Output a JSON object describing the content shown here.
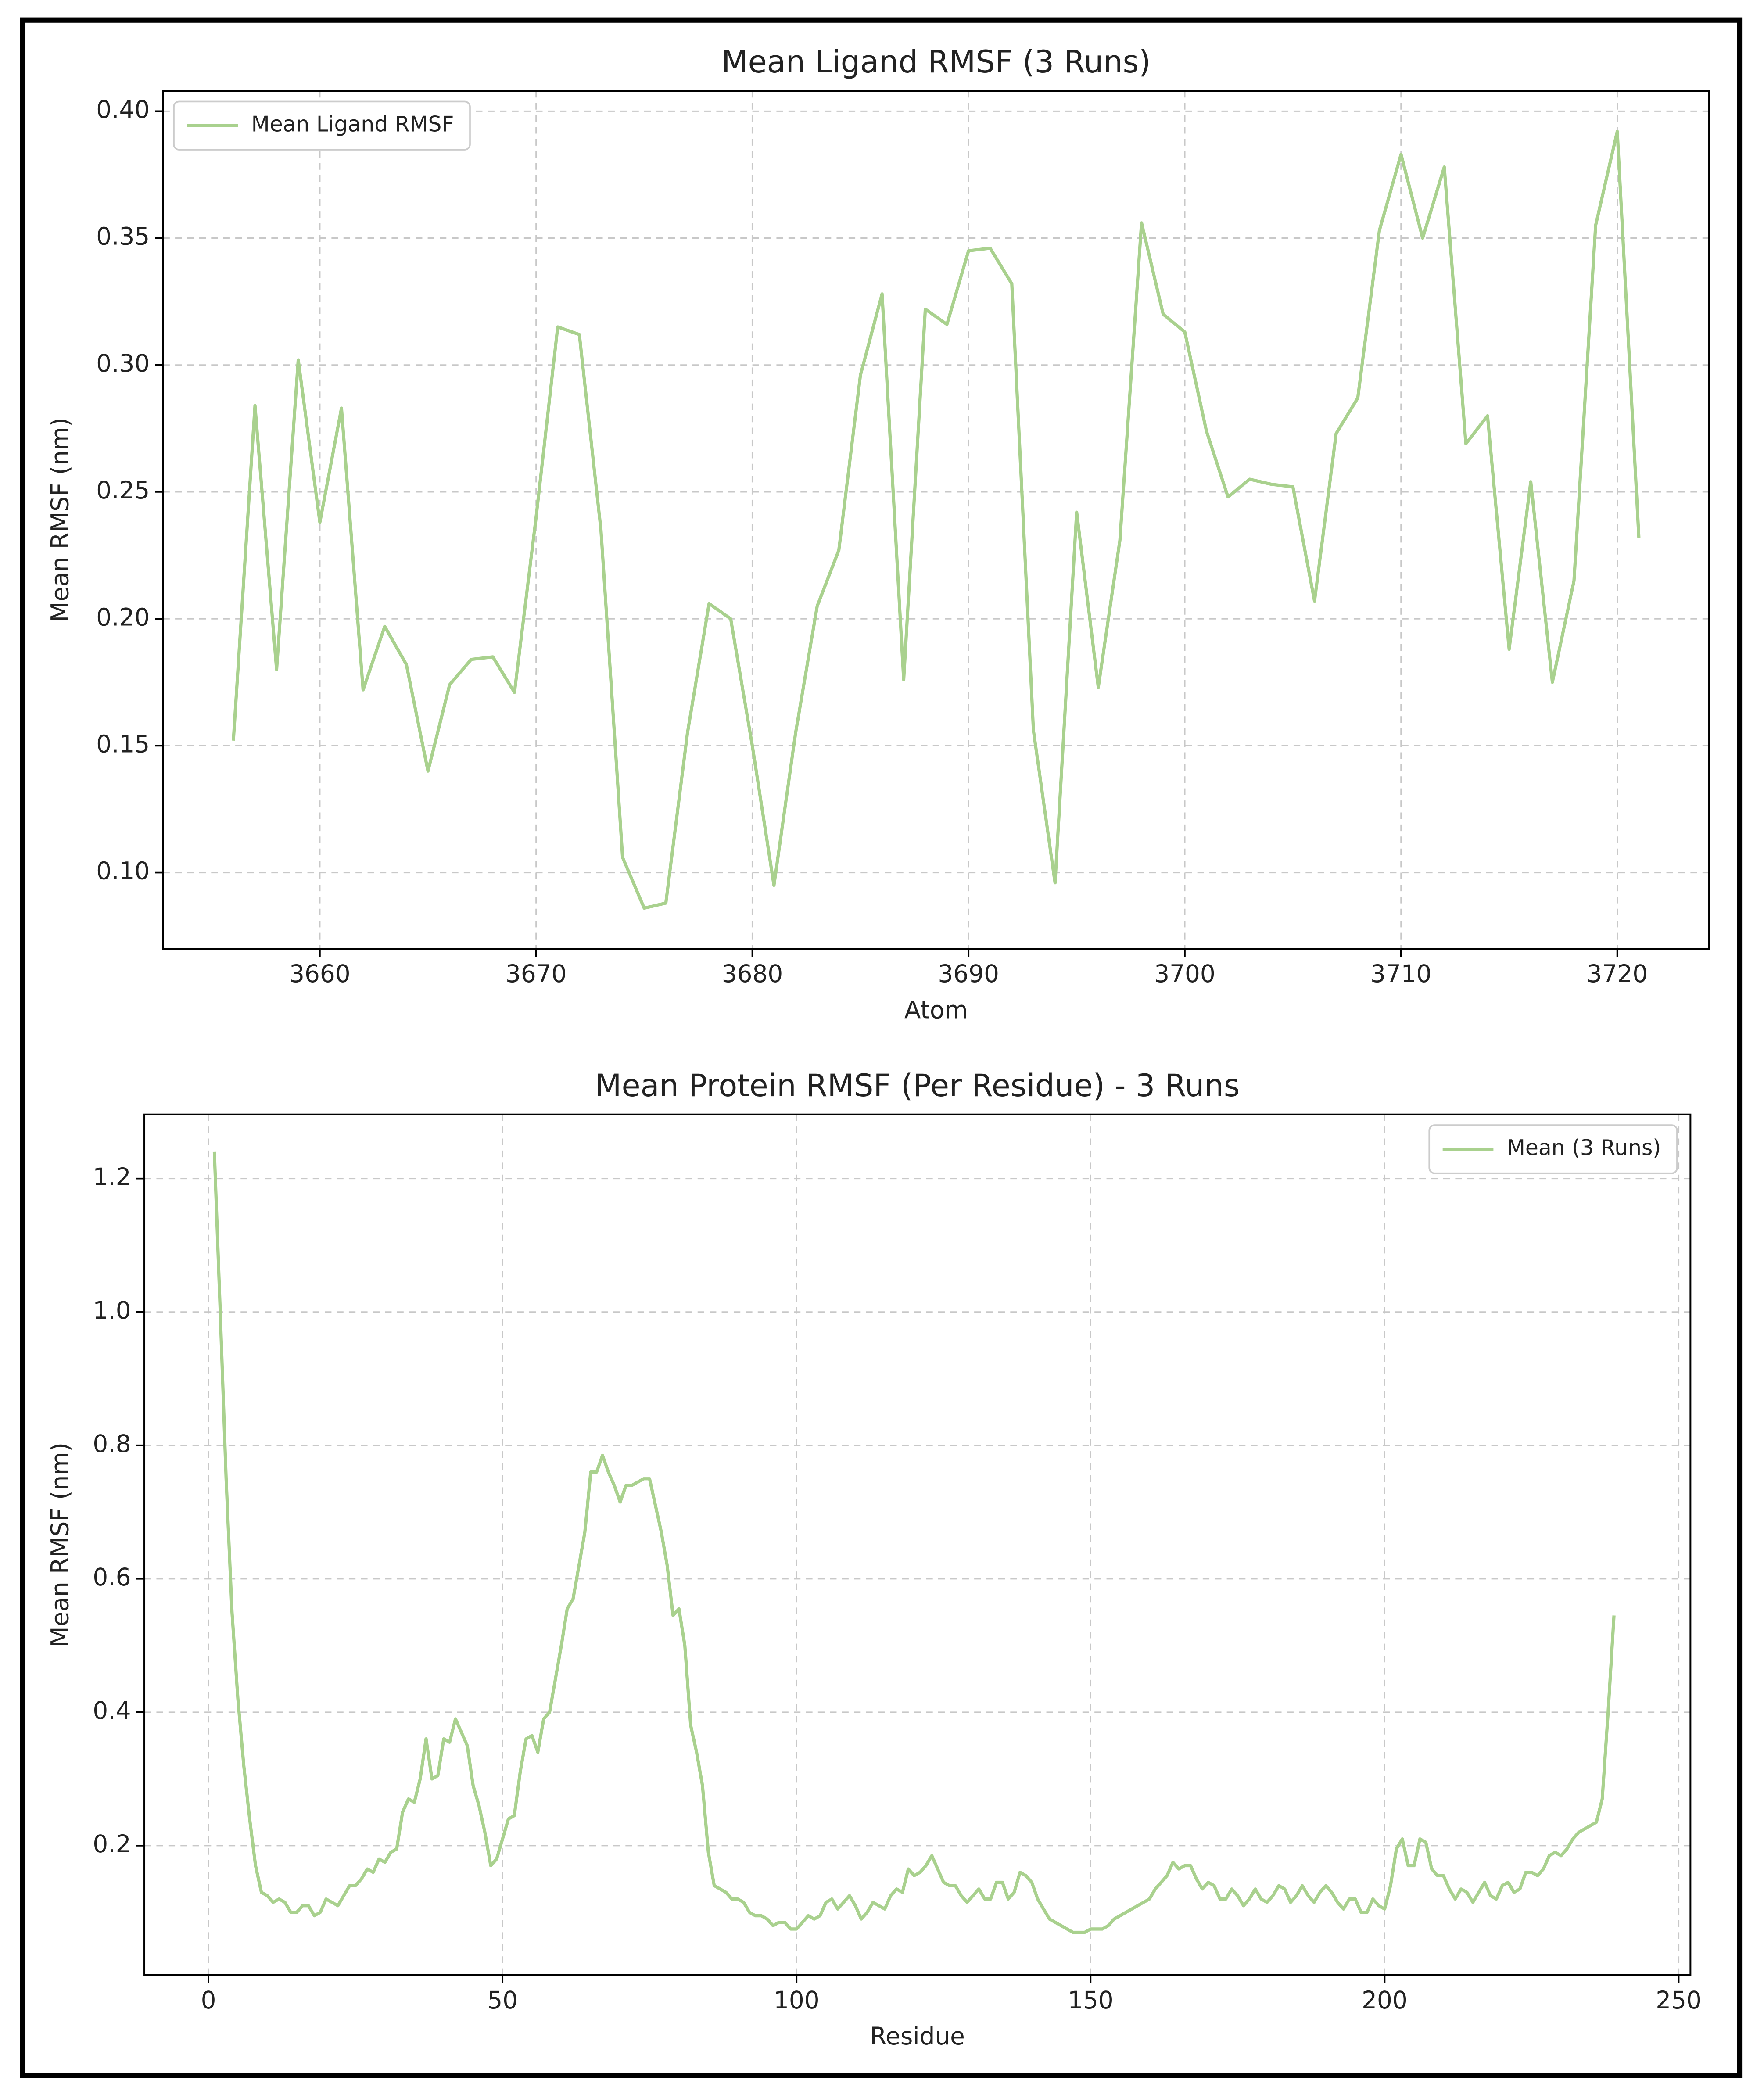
{
  "chart_data": [
    {
      "type": "line",
      "title": "Mean Ligand RMSF (3 Runs)",
      "xlabel": "Atom",
      "ylabel": "Mean RMSF (nm)",
      "x": [
        3656,
        3657,
        3658,
        3659,
        3660,
        3661,
        3662,
        3663,
        3664,
        3665,
        3666,
        3667,
        3668,
        3669,
        3670,
        3671,
        3672,
        3673,
        3674,
        3675,
        3676,
        3677,
        3678,
        3679,
        3680,
        3681,
        3682,
        3683,
        3684,
        3685,
        3686,
        3687,
        3688,
        3689,
        3690,
        3691,
        3692,
        3693,
        3694,
        3695,
        3696,
        3697,
        3698,
        3699,
        3700,
        3701,
        3702,
        3703,
        3704,
        3705,
        3706,
        3707,
        3708,
        3709,
        3710,
        3711,
        3712,
        3713,
        3714,
        3715,
        3716,
        3717,
        3718,
        3719,
        3720,
        3721
      ],
      "series": [
        {
          "name": "Mean Ligand RMSF",
          "color": "#a9d18e",
          "values": [
            0.152,
            0.284,
            0.18,
            0.302,
            0.238,
            0.283,
            0.172,
            0.197,
            0.182,
            0.14,
            0.174,
            0.184,
            0.185,
            0.171,
            0.24,
            0.315,
            0.312,
            0.235,
            0.106,
            0.086,
            0.088,
            0.155,
            0.206,
            0.2,
            0.15,
            0.095,
            0.155,
            0.205,
            0.227,
            0.296,
            0.328,
            0.176,
            0.322,
            0.316,
            0.345,
            0.346,
            0.332,
            0.156,
            0.096,
            0.242,
            0.173,
            0.231,
            0.356,
            0.32,
            0.313,
            0.274,
            0.248,
            0.255,
            0.253,
            0.252,
            0.207,
            0.273,
            0.287,
            0.353,
            0.383,
            0.35,
            0.378,
            0.269,
            0.28,
            0.188,
            0.254,
            0.175,
            0.215,
            0.355,
            0.392,
            0.232
          ]
        }
      ],
      "xlim": [
        3652.75,
        3724.25
      ],
      "ylim": [
        0.07,
        0.408
      ],
      "xticks": [
        3660,
        3670,
        3680,
        3690,
        3700,
        3710,
        3720
      ],
      "yticks": [
        {
          "value": 0.1,
          "label": "0.10"
        },
        0.15,
        {
          "value": 0.2,
          "label": "0.20"
        },
        0.25,
        {
          "value": 0.3,
          "label": "0.30"
        },
        0.35,
        {
          "value": 0.4,
          "label": "0.40"
        }
      ],
      "grid": true,
      "legend": "upper-left"
    },
    {
      "type": "line",
      "title": "Mean Protein RMSF (Per Residue) - 3 Runs",
      "xlabel": "Residue",
      "ylabel": "Mean RMSF (nm)",
      "x": [
        1,
        2,
        3,
        4,
        5,
        6,
        7,
        8,
        9,
        10,
        11,
        12,
        13,
        14,
        15,
        16,
        17,
        18,
        19,
        20,
        21,
        22,
        23,
        24,
        25,
        26,
        27,
        28,
        29,
        30,
        31,
        32,
        33,
        34,
        35,
        36,
        37,
        38,
        39,
        40,
        41,
        42,
        43,
        44,
        45,
        46,
        47,
        48,
        49,
        50,
        51,
        52,
        53,
        54,
        55,
        56,
        57,
        58,
        59,
        60,
        61,
        62,
        63,
        64,
        65,
        66,
        67,
        68,
        69,
        70,
        71,
        72,
        73,
        74,
        75,
        76,
        77,
        78,
        79,
        80,
        81,
        82,
        83,
        84,
        85,
        86,
        87,
        88,
        89,
        90,
        91,
        92,
        93,
        94,
        95,
        96,
        97,
        98,
        99,
        100,
        101,
        102,
        103,
        104,
        105,
        106,
        107,
        108,
        109,
        110,
        111,
        112,
        113,
        114,
        115,
        116,
        117,
        118,
        119,
        120,
        121,
        122,
        123,
        124,
        125,
        126,
        127,
        128,
        129,
        130,
        131,
        132,
        133,
        134,
        135,
        136,
        137,
        138,
        139,
        140,
        141,
        142,
        143,
        144,
        145,
        146,
        147,
        148,
        149,
        150,
        151,
        152,
        153,
        154,
        155,
        156,
        157,
        158,
        159,
        160,
        161,
        162,
        163,
        164,
        165,
        166,
        167,
        168,
        169,
        170,
        171,
        172,
        173,
        174,
        175,
        176,
        177,
        178,
        179,
        180,
        181,
        182,
        183,
        184,
        185,
        186,
        187,
        188,
        189,
        190,
        191,
        192,
        193,
        194,
        195,
        196,
        197,
        198,
        199,
        200,
        201,
        202,
        203,
        204,
        205,
        206,
        207,
        208,
        209,
        210,
        211,
        212,
        213,
        214,
        215,
        216,
        217,
        218,
        219,
        220,
        221,
        222,
        223,
        224,
        225,
        226,
        227,
        228,
        229,
        230,
        231,
        232,
        233,
        234,
        235,
        236,
        237,
        238,
        239
      ],
      "series": [
        {
          "name": "Mean (3 Runs)",
          "color": "#a9d18e",
          "values": [
            1.24,
            1.0,
            0.75,
            0.55,
            0.42,
            0.32,
            0.24,
            0.17,
            0.13,
            0.125,
            0.115,
            0.12,
            0.115,
            0.1,
            0.1,
            0.11,
            0.11,
            0.095,
            0.1,
            0.12,
            0.115,
            0.11,
            0.125,
            0.14,
            0.14,
            0.15,
            0.165,
            0.16,
            0.18,
            0.175,
            0.19,
            0.195,
            0.25,
            0.27,
            0.265,
            0.3,
            0.36,
            0.3,
            0.305,
            0.36,
            0.355,
            0.39,
            0.37,
            0.35,
            0.29,
            0.26,
            0.22,
            0.17,
            0.18,
            0.21,
            0.24,
            0.245,
            0.31,
            0.36,
            0.365,
            0.34,
            0.39,
            0.4,
            0.45,
            0.5,
            0.555,
            0.57,
            0.62,
            0.67,
            0.76,
            0.76,
            0.785,
            0.76,
            0.74,
            0.715,
            0.74,
            0.74,
            0.745,
            0.75,
            0.75,
            0.71,
            0.67,
            0.62,
            0.545,
            0.555,
            0.5,
            0.38,
            0.34,
            0.29,
            0.19,
            0.14,
            0.135,
            0.13,
            0.12,
            0.12,
            0.115,
            0.1,
            0.095,
            0.095,
            0.09,
            0.08,
            0.085,
            0.085,
            0.075,
            0.075,
            0.085,
            0.095,
            0.09,
            0.095,
            0.115,
            0.12,
            0.105,
            0.115,
            0.125,
            0.11,
            0.09,
            0.1,
            0.115,
            0.11,
            0.105,
            0.125,
            0.135,
            0.13,
            0.165,
            0.155,
            0.16,
            0.17,
            0.185,
            0.165,
            0.145,
            0.14,
            0.14,
            0.125,
            0.115,
            0.125,
            0.135,
            0.12,
            0.12,
            0.145,
            0.145,
            0.12,
            0.13,
            0.16,
            0.155,
            0.145,
            0.12,
            0.105,
            0.09,
            0.085,
            0.08,
            0.075,
            0.07,
            0.07,
            0.07,
            0.075,
            0.075,
            0.075,
            0.08,
            0.09,
            0.095,
            0.1,
            0.105,
            0.11,
            0.115,
            0.12,
            0.135,
            0.145,
            0.155,
            0.175,
            0.165,
            0.17,
            0.17,
            0.15,
            0.135,
            0.145,
            0.14,
            0.12,
            0.12,
            0.135,
            0.125,
            0.11,
            0.12,
            0.135,
            0.12,
            0.115,
            0.125,
            0.14,
            0.135,
            0.115,
            0.125,
            0.14,
            0.125,
            0.115,
            0.13,
            0.14,
            0.13,
            0.115,
            0.105,
            0.12,
            0.12,
            0.1,
            0.1,
            0.12,
            0.11,
            0.105,
            0.14,
            0.195,
            0.21,
            0.17,
            0.17,
            0.21,
            0.205,
            0.165,
            0.155,
            0.155,
            0.135,
            0.12,
            0.135,
            0.13,
            0.115,
            0.13,
            0.145,
            0.125,
            0.12,
            0.14,
            0.145,
            0.13,
            0.135,
            0.16,
            0.16,
            0.155,
            0.165,
            0.185,
            0.19,
            0.185,
            0.195,
            0.21,
            0.22,
            0.225,
            0.23,
            0.235,
            0.27,
            0.4,
            0.545
          ]
        }
      ],
      "xlim": [
        -10.9,
        252
      ],
      "ylim": [
        0.006,
        1.296
      ],
      "xticks": [
        0,
        50,
        100,
        150,
        200,
        250
      ],
      "yticks": [
        0.2,
        0.4,
        0.6,
        0.8,
        {
          "value": 1,
          "label": "1.0"
        },
        1.2
      ],
      "grid": true,
      "legend": "upper-right"
    }
  ]
}
